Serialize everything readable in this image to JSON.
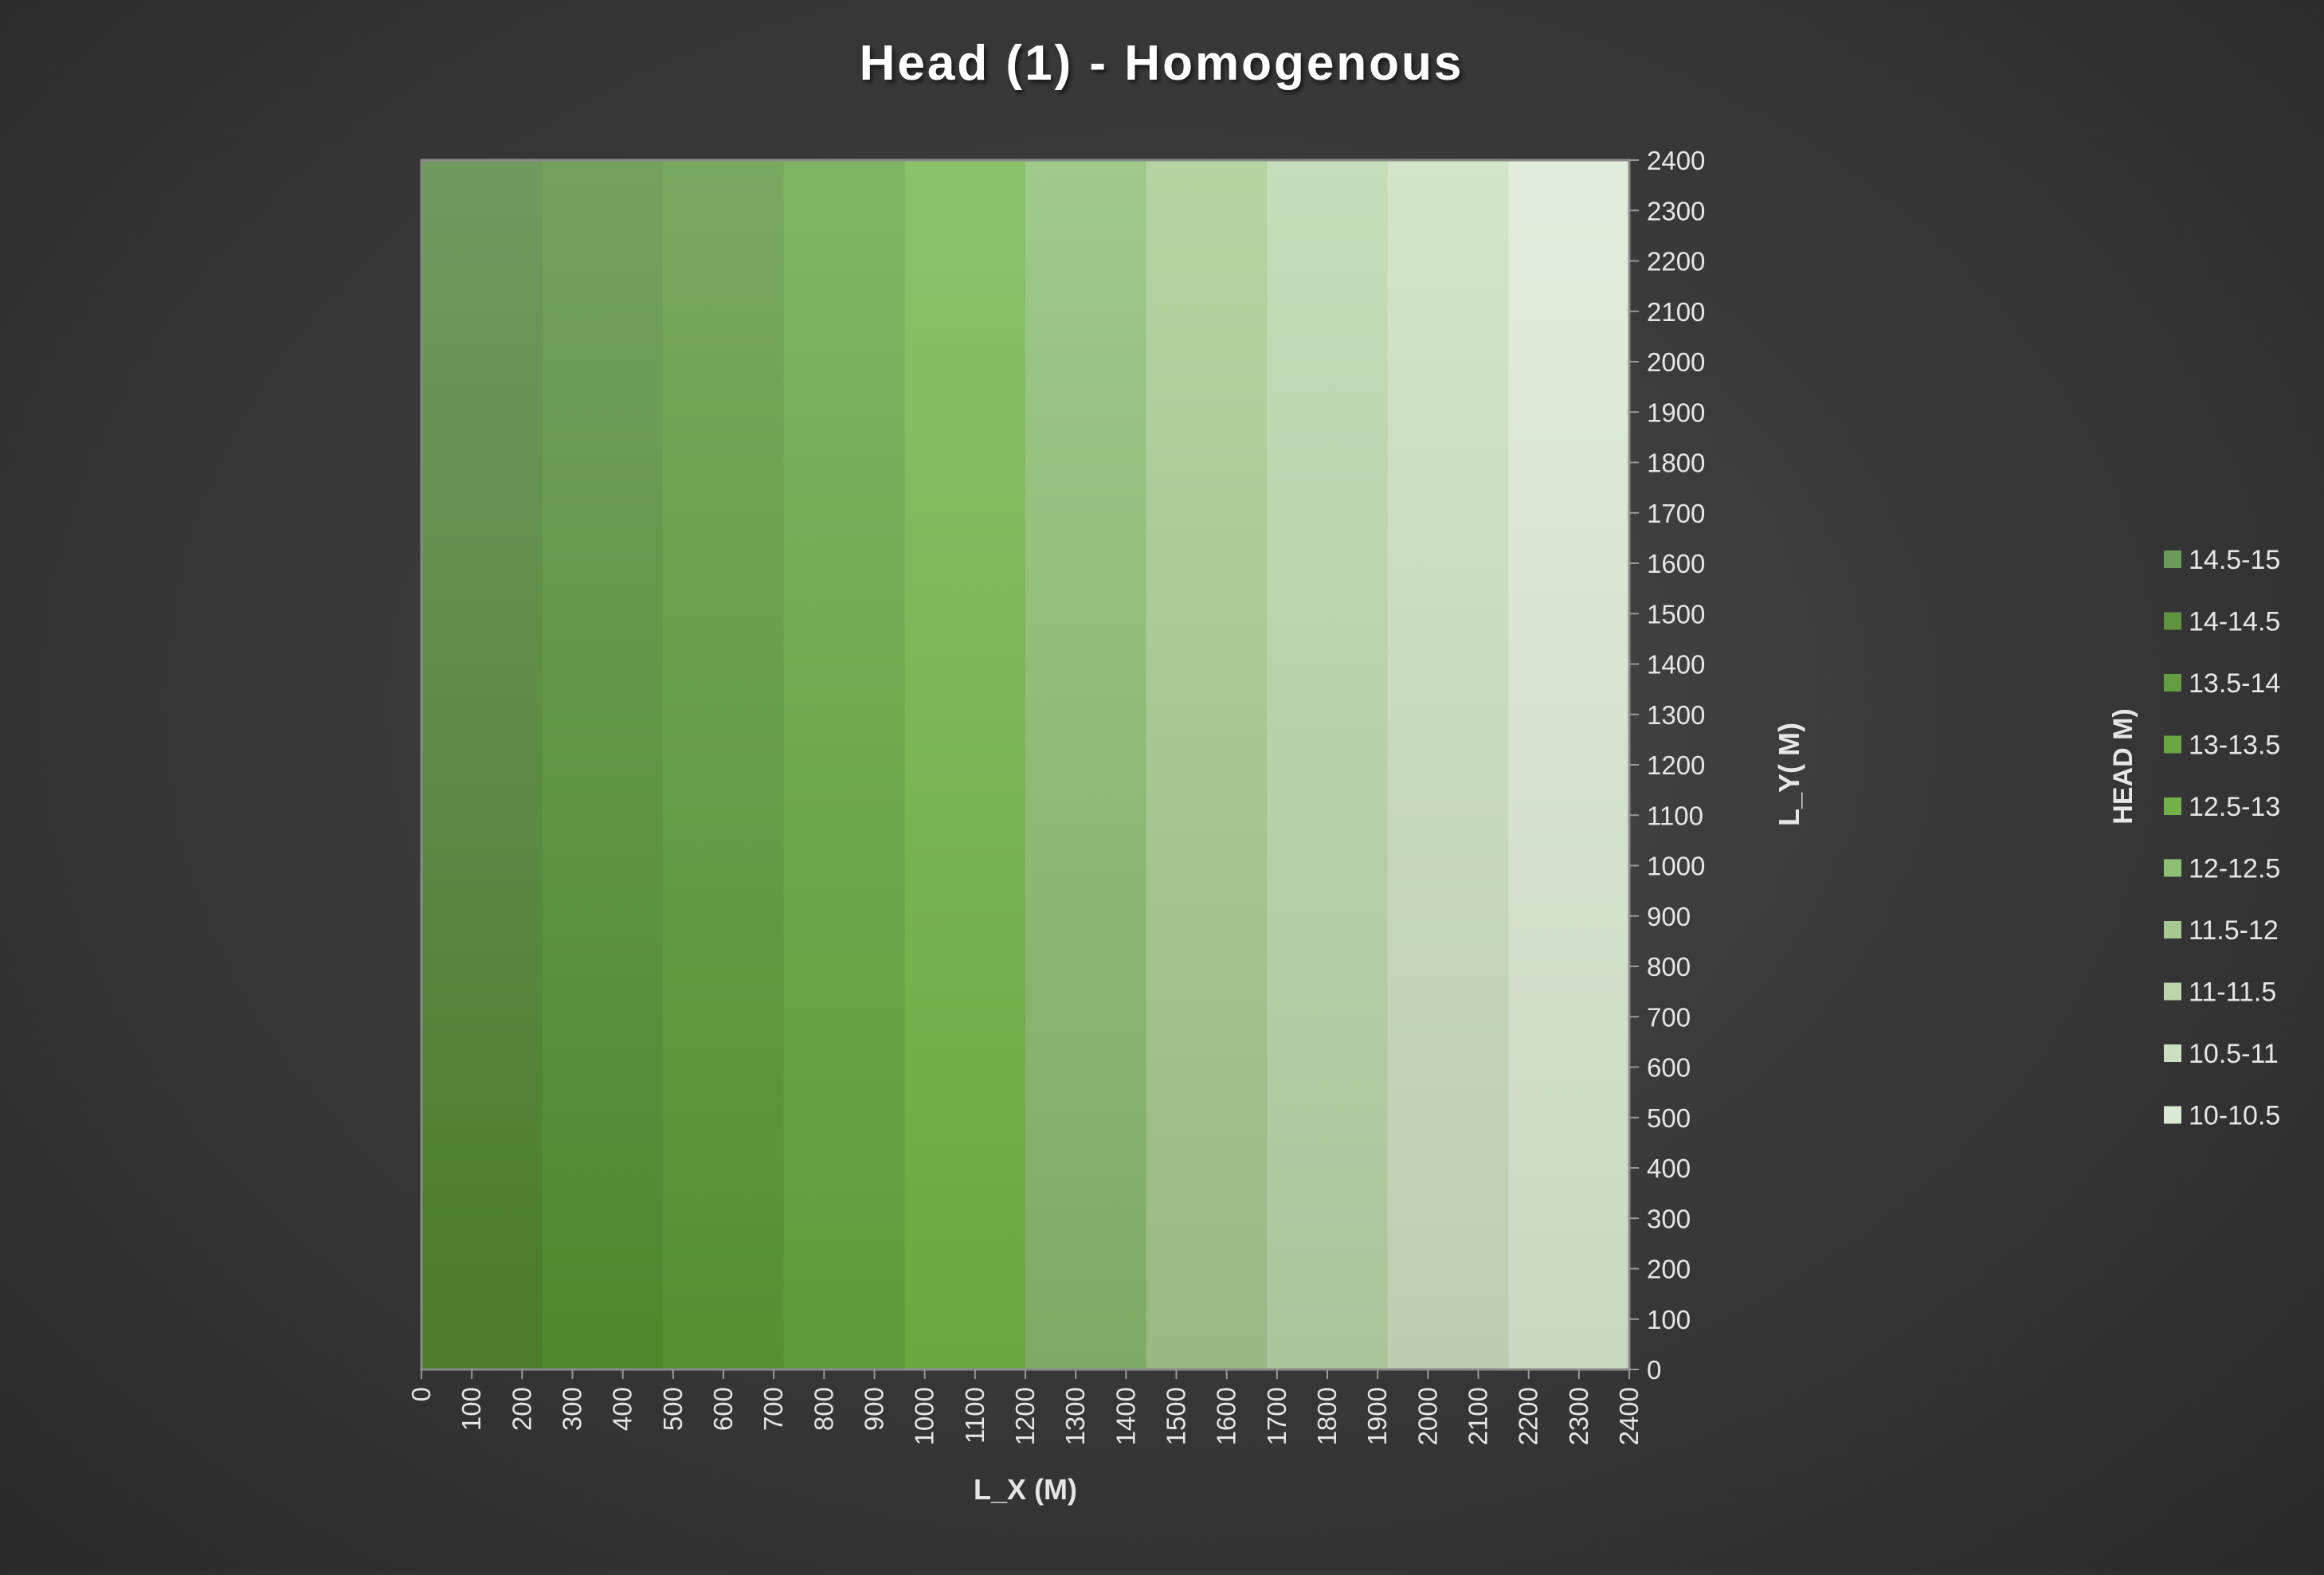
{
  "chart_data": {
    "type": "heatmap",
    "title": "Head (1) - Homogenous",
    "xlabel": "L_X (M)",
    "ylabel": "L_Y( M)",
    "legend_title": "HEAD M)",
    "legend_position": "right",
    "xlim": [
      0,
      2400
    ],
    "ylim": [
      0,
      2400
    ],
    "x_ticks": [
      0,
      100,
      200,
      300,
      400,
      500,
      600,
      700,
      800,
      900,
      1000,
      1100,
      1200,
      1300,
      1400,
      1500,
      1600,
      1700,
      1800,
      1900,
      2000,
      2100,
      2200,
      2300,
      2400
    ],
    "y_ticks": [
      0,
      100,
      200,
      300,
      400,
      500,
      600,
      700,
      800,
      900,
      1000,
      1100,
      1200,
      1300,
      1400,
      1500,
      1600,
      1700,
      1800,
      1900,
      2000,
      2100,
      2200,
      2300,
      2400
    ],
    "grid": false,
    "legend": [
      {
        "label": "14.5-15",
        "color": "#6c9a58"
      },
      {
        "label": "14-14.5",
        "color": "#5f9440"
      },
      {
        "label": "13.5-14",
        "color": "#649c42"
      },
      {
        "label": "13-13.5",
        "color": "#6aa644"
      },
      {
        "label": "12.5-13",
        "color": "#72b146"
      },
      {
        "label": "12-12.5",
        "color": "#8fbf74"
      },
      {
        "label": "11.5-12",
        "color": "#a6c992"
      },
      {
        "label": "11-11.5",
        "color": "#bad4ab"
      },
      {
        "label": "10.5-11",
        "color": "#cbdfc1"
      },
      {
        "label": "10-10.5",
        "color": "#dbe8d3"
      }
    ],
    "bands": [
      {
        "x": [
          0,
          240
        ],
        "range": "14.5-15",
        "color_top": "#6e9a5e",
        "color_bottom": "#4a7c2a"
      },
      {
        "x": [
          240,
          480
        ],
        "range": "14-14.5",
        "color_top": "#73a25d",
        "color_bottom": "#4f872e"
      },
      {
        "x": [
          480,
          720
        ],
        "range": "13.5-14",
        "color_top": "#79a960",
        "color_bottom": "#558f31"
      },
      {
        "x": [
          720,
          960
        ],
        "range": "13-13.5",
        "color_top": "#80b566",
        "color_bottom": "#5d9b37"
      },
      {
        "x": [
          960,
          1200
        ],
        "range": "12.5-13",
        "color_top": "#8cc16c",
        "color_bottom": "#68a83c"
      },
      {
        "x": [
          1200,
          1440
        ],
        "range": "12-12.5",
        "color_top": "#a0c98a",
        "color_bottom": "#7eab63"
      },
      {
        "x": [
          1440,
          1680
        ],
        "range": "11.5-12",
        "color_top": "#b4d4a3",
        "color_bottom": "#98b884"
      },
      {
        "x": [
          1680,
          1920
        ],
        "range": "11-11.5",
        "color_top": "#c5ddb8",
        "color_bottom": "#acc49c"
      },
      {
        "x": [
          1920,
          2160
        ],
        "range": "10.5-11",
        "color_top": "#d3e5c9",
        "color_bottom": "#bcceae"
      },
      {
        "x": [
          2160,
          2400
        ],
        "range": "10-10.5",
        "color_top": "#e2ecdc",
        "color_bottom": "#cad8c0"
      }
    ]
  }
}
